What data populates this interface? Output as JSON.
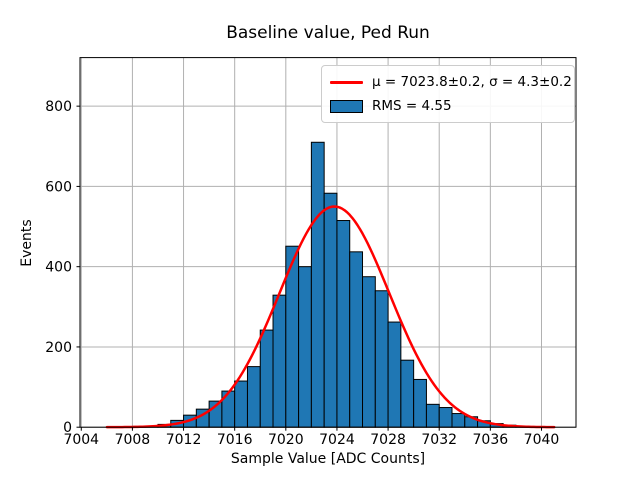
{
  "figure": {
    "title": "Baseline value, Ped Run",
    "xlabel": "Sample Value [ADC Counts]",
    "ylabel": "Events"
  },
  "chart_data": {
    "type": "bar",
    "subtype": "histogram",
    "title": "Baseline value, Ped Run",
    "xlabel": "Sample Value [ADC Counts]",
    "ylabel": "Events",
    "xlim": [
      7003.9,
      7042.7
    ],
    "ylim": [
      0,
      921
    ],
    "x_ticks": [
      7004,
      7008,
      7012,
      7016,
      7020,
      7024,
      7028,
      7032,
      7036,
      7040
    ],
    "y_ticks": [
      0,
      200,
      400,
      600,
      800
    ],
    "grid": true,
    "bin_width": 1,
    "bin_left_edges": [
      7006,
      7007,
      7008,
      7009,
      7010,
      7011,
      7012,
      7013,
      7014,
      7015,
      7016,
      7017,
      7018,
      7019,
      7020,
      7021,
      7022,
      7023,
      7024,
      7025,
      7026,
      7027,
      7028,
      7029,
      7030,
      7031,
      7032,
      7033,
      7034,
      7035,
      7036,
      7037,
      7038,
      7039,
      7040
    ],
    "counts": [
      1,
      1,
      2,
      3,
      7,
      17,
      30,
      45,
      65,
      90,
      115,
      151,
      242,
      329,
      451,
      400,
      710,
      583,
      515,
      437,
      375,
      340,
      262,
      167,
      119,
      57,
      49,
      34,
      26,
      16,
      9,
      5,
      2,
      1,
      1
    ],
    "fit": {
      "type": "gaussian",
      "amplitude": 550,
      "mu": 7023.8,
      "mu_err": 0.2,
      "sigma": 4.3,
      "sigma_err": 0.2,
      "x_range": [
        7006,
        7041
      ]
    },
    "legend": {
      "position": "upper right",
      "entries": [
        {
          "label": "μ = 7023.8±0.2, σ = 4.3±0.2",
          "type": "line",
          "color": "#ff0000"
        },
        {
          "label": "RMS = 4.55",
          "type": "patch",
          "color": "#1f77b4"
        }
      ]
    },
    "colors": {
      "bar_fill": "#1f77b4",
      "bar_edge": "#000000",
      "fit_line": "#ff0000",
      "grid": "#b0b0b0",
      "axes": "#000000",
      "legend_border": "#cccccc"
    }
  }
}
